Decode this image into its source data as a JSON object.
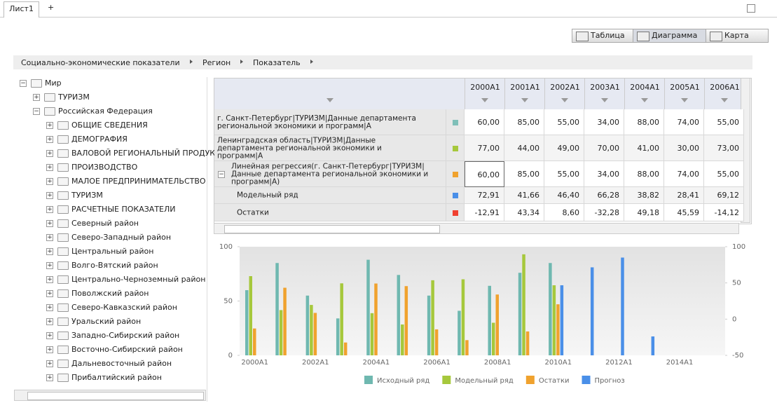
{
  "tabs": {
    "sheet": "Лист1",
    "add": "+"
  },
  "toolbar": {
    "buttons": [
      "Таблица",
      "Диаграмма",
      "Карта"
    ]
  },
  "breadcrumb": [
    "Социально-экономические показатели",
    "Регион",
    "Показатель"
  ],
  "tree": {
    "label": "Мир",
    "children": [
      {
        "label": "ТУРИЗМ"
      },
      {
        "label": "Российская Федерация",
        "children": [
          {
            "label": "ОБЩИЕ СВЕДЕНИЯ"
          },
          {
            "label": "ДЕМОГРАФИЯ"
          },
          {
            "label": "ВАЛОВОЙ РЕГИОНАЛЬНЫЙ ПРОДУКТ"
          },
          {
            "label": "ПРОИЗВОДСТВО"
          },
          {
            "label": "МАЛОЕ ПРЕДПРИНИМАТЕЛЬСТВО"
          },
          {
            "label": "ТУРИЗМ"
          },
          {
            "label": "РАСЧЕТНЫЕ ПОКАЗАТЕЛИ"
          },
          {
            "label": "Северный район"
          },
          {
            "label": "Северо-Западный район"
          },
          {
            "label": "Центральный район"
          },
          {
            "label": "Волго-Вятский район"
          },
          {
            "label": "Центрально-Черноземный район"
          },
          {
            "label": "Поволжский район"
          },
          {
            "label": "Северо-Кавказский район"
          },
          {
            "label": "Уральский район"
          },
          {
            "label": "Западно-Сибирский район"
          },
          {
            "label": "Восточно-Сибирский район"
          },
          {
            "label": "Дальневосточный район"
          },
          {
            "label": "Прибалтийский район"
          }
        ]
      }
    ]
  },
  "table": {
    "columns": [
      "2000A1",
      "2001A1",
      "2002A1",
      "2003A1",
      "2004A1",
      "2005A1",
      "2006A1"
    ],
    "rows": [
      {
        "label": "г. Санкт-Петербург|ТУРИЗМ|Данные департамента региональной экономики и программ|A",
        "color": "#7fbfb8",
        "values": [
          "60,00",
          "85,00",
          "55,00",
          "34,00",
          "88,00",
          "74,00",
          "55,00"
        ]
      },
      {
        "label": "Ленинградская область|ТУРИЗМ|Данные департамента региональной экономики и программ|A",
        "color": "#a6c83c",
        "values": [
          "77,00",
          "44,00",
          "49,00",
          "70,00",
          "41,00",
          "30,00",
          "73,00"
        ]
      },
      {
        "label": "Линейная регрессия(г. Санкт-Петербург|ТУРИЗМ|Данные департамента региональной экономики и программ|A)",
        "color": "#f0a22e",
        "values": [
          "60,00",
          "85,00",
          "55,00",
          "34,00",
          "88,00",
          "74,00",
          "55,00"
        ]
      },
      {
        "label": "Модельный ряд",
        "color": "#4a8fe8",
        "values": [
          "72,91",
          "41,66",
          "46,40",
          "66,28",
          "38,82",
          "28,41",
          "69,12"
        ]
      },
      {
        "label": "Остатки",
        "color": "#f04030",
        "values": [
          "-12,91",
          "43,34",
          "8,60",
          "-32,28",
          "49,18",
          "45,59",
          "-14,12"
        ]
      }
    ]
  },
  "chart_data": {
    "type": "bar",
    "categories": [
      "2000A1",
      null,
      "2002A1",
      null,
      "2004A1",
      null,
      "2006A1",
      null,
      "2008A1",
      null,
      "2010A1",
      null,
      "2012A1",
      null,
      "2014A1",
      null
    ],
    "series": [
      {
        "name": "Исходный ряд",
        "color": "#6fb8b0",
        "values": [
          60,
          85,
          55,
          34,
          88,
          74,
          55,
          41,
          64,
          76,
          85,
          null,
          null,
          null,
          null,
          null
        ]
      },
      {
        "name": "Модельный ряд",
        "color": "#a6c83c",
        "values": [
          72.91,
          41.66,
          46.4,
          66.28,
          38.82,
          28.41,
          69.12,
          70,
          30,
          93,
          64.5,
          null,
          null,
          null,
          null,
          null
        ]
      },
      {
        "name": "Остатки",
        "color": "#f0a22e",
        "axis": "y2",
        "values": [
          -12.91,
          43.34,
          8.6,
          -32.28,
          49.18,
          45.59,
          -14.12,
          -29,
          34,
          -17,
          20.5,
          null,
          null,
          null,
          null,
          null
        ]
      },
      {
        "name": "Прогноз",
        "color": "#4a8fe8",
        "values": [
          null,
          null,
          null,
          null,
          null,
          null,
          null,
          null,
          null,
          null,
          64.5,
          81,
          90,
          17.4,
          null,
          null
        ]
      }
    ],
    "ylim": [
      0,
      100
    ],
    "yticks": [
      0,
      50,
      100
    ],
    "y2lim": [
      -50,
      100
    ],
    "y2ticks": [
      -50,
      0,
      50,
      100
    ]
  }
}
